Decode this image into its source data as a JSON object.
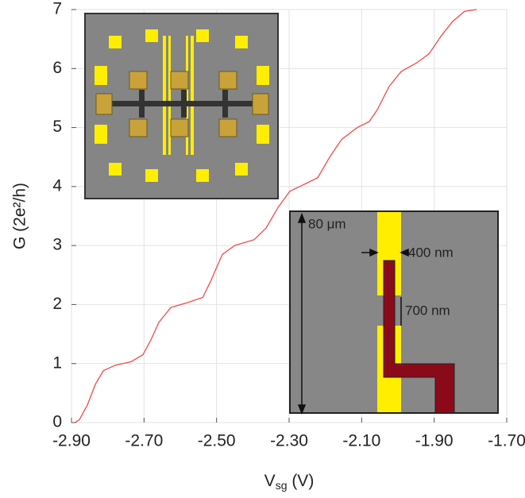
{
  "chart_data": {
    "type": "line",
    "x_label": {
      "main": "V",
      "sub": "sg",
      "unit": " (V)"
    },
    "y_label": "G  (2e²/h)",
    "annotations": [
      "80 μm",
      "400 nm",
      "700 nm"
    ],
    "color": "#f04a4a",
    "grid": true,
    "xlim": [
      -2.9,
      -1.7
    ],
    "ylim": [
      0,
      7
    ],
    "xticks": [
      {
        "value": -2.9,
        "label": "-2.90"
      },
      {
        "value": -2.7,
        "label": "-2.70"
      },
      {
        "value": -2.5,
        "label": "-2.50"
      },
      {
        "value": -2.3,
        "label": "-2.30"
      },
      {
        "value": -2.1,
        "label": "-2.10"
      },
      {
        "value": -1.9,
        "label": "-1.90"
      },
      {
        "value": -1.7,
        "label": "-1.70"
      }
    ],
    "yticks": [
      0,
      1,
      2,
      3,
      4,
      5,
      6,
      7
    ],
    "x": [
      -2.89,
      -2.878,
      -2.856,
      -2.834,
      -2.812,
      -2.78,
      -2.736,
      -2.703,
      -2.681,
      -2.659,
      -2.626,
      -2.582,
      -2.538,
      -2.516,
      -2.484,
      -2.45,
      -2.396,
      -2.363,
      -2.33,
      -2.298,
      -2.254,
      -2.221,
      -2.188,
      -2.155,
      -2.112,
      -2.079,
      -2.057,
      -2.024,
      -1.991,
      -1.947,
      -1.914,
      -1.881,
      -1.849,
      -1.816,
      -1.783
    ],
    "values": [
      0,
      0.05,
      0.3,
      0.65,
      0.88,
      0.97,
      1.03,
      1.15,
      1.4,
      1.7,
      1.95,
      2.03,
      2.12,
      2.4,
      2.85,
      3.0,
      3.1,
      3.3,
      3.65,
      3.92,
      4.05,
      4.15,
      4.5,
      4.8,
      5.0,
      5.1,
      5.3,
      5.7,
      5.95,
      6.1,
      6.25,
      6.55,
      6.8,
      6.97,
      7.0
    ]
  }
}
